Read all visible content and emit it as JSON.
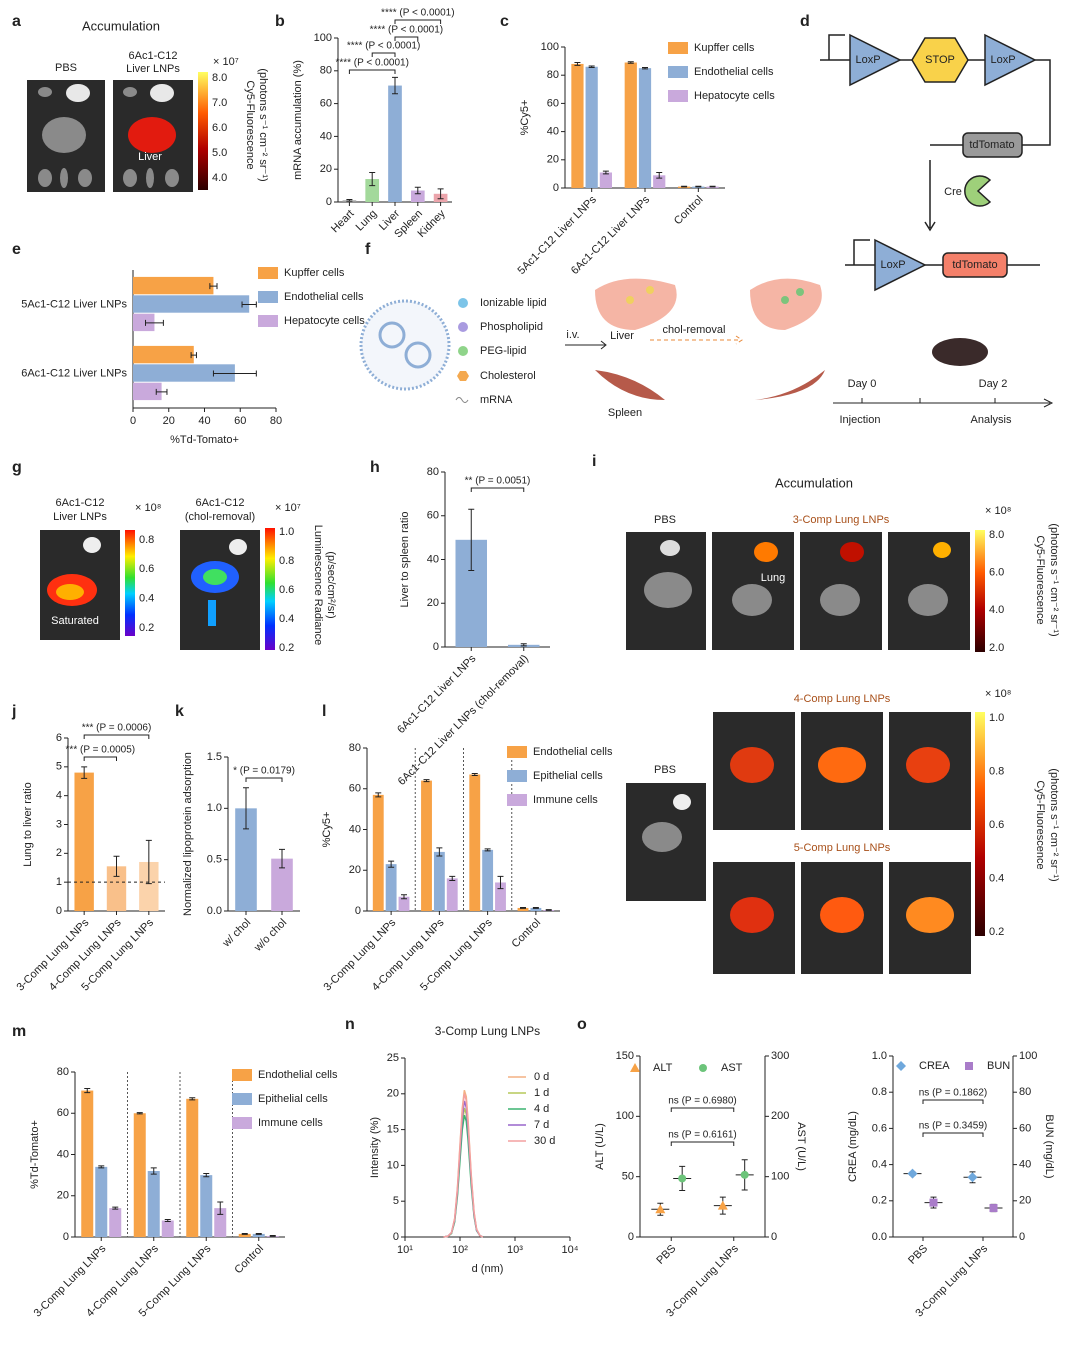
{
  "panel_labels": [
    "a",
    "b",
    "c",
    "d",
    "e",
    "f",
    "g",
    "h",
    "i",
    "j",
    "k",
    "l",
    "m",
    "n",
    "o"
  ],
  "panel_a": {
    "title": "Accumulation",
    "labels": [
      "PBS",
      "6Ac1-C12",
      "Liver LNPs"
    ],
    "organ_label": "Liver",
    "scale_exponent": "× 10⁷",
    "scale_ticks": [
      "8.0",
      "7.0",
      "6.0",
      "5.0",
      "4.0"
    ],
    "scale_title": [
      "Cy5-Fluorescence",
      "(photons s⁻¹ cm⁻² sr⁻¹)"
    ]
  },
  "panel_d": {
    "top": [
      "LoxP",
      "STOP",
      "LoxP",
      "tdTomato"
    ],
    "enzyme": "Cre",
    "bottom": [
      "LoxP",
      "tdTomato"
    ]
  },
  "panel_f": {
    "legend": [
      "Ionizable lipid",
      "Phospholipid",
      "PEG-lipid",
      "Cholesterol",
      "mRNA"
    ],
    "route": "i.v.",
    "liver": "Liver",
    "treatment": "chol-removal",
    "spleen": "Spleen",
    "timeline": [
      "Day 0",
      "Day 2"
    ],
    "steps": [
      "Injection",
      "Analysis"
    ]
  },
  "panel_g": {
    "labels": [
      "6Ac1-C12",
      "Liver LNPs",
      "6Ac1-C12",
      "(chol-removal)"
    ],
    "note": "Saturated",
    "scale1_exponent": "× 10⁸",
    "scale1_ticks": [
      "0.8",
      "0.6",
      "0.4",
      "0.2"
    ],
    "scale2_exponent": "× 10⁷",
    "scale2_ticks": [
      "1.0",
      "0.8",
      "0.6",
      "0.4",
      "0.2"
    ],
    "scale_title": [
      "Luminescence Radiance",
      "(p/sec/cm²/sr)"
    ]
  },
  "panel_i": {
    "title": "Accumulation",
    "top": {
      "control": "PBS",
      "group": "3-Comp Lung LNPs",
      "organ_label": "Lung",
      "scale_exponent": "× 10⁸",
      "scale_ticks": [
        "8.0",
        "6.0",
        "4.0",
        "2.0"
      ],
      "scale_title": [
        "Cy5-Fluorescence",
        "(photons s⁻¹ cm⁻² sr⁻¹)"
      ]
    },
    "bottom": {
      "control": "PBS",
      "groups": [
        "4-Comp Lung LNPs",
        "5-Comp Lung LNPs"
      ],
      "scale_exponent": "× 10⁸",
      "scale_ticks": [
        "1.0",
        "0.8",
        "0.6",
        "0.4",
        "0.2"
      ],
      "scale_title": [
        "Cy5-Fluorescence",
        "(photons s⁻¹ cm⁻² sr⁻¹)"
      ]
    }
  },
  "chart_data": [
    {
      "type": "bar",
      "ylabel": "mRNA accumulation (%)",
      "categories": [
        "Heart",
        "Lung",
        "Liver",
        "Spleen",
        "Kidney"
      ],
      "values": [
        1,
        14,
        71,
        7,
        5
      ],
      "errors": [
        0.5,
        4,
        5,
        2,
        3
      ],
      "colors": [
        "#9e9e9e",
        "#a3d99b",
        "#8eaed6",
        "#c9a9dc",
        "#eba4ab"
      ],
      "ylim": [
        0,
        100
      ],
      "yticks": [
        0,
        20,
        40,
        60,
        80,
        100
      ],
      "annotations": [
        "**** (P < 0.0001)",
        "**** (P < 0.0001)",
        "**** (P < 0.0001)",
        "**** (P < 0.0001)"
      ]
    },
    {
      "type": "bar",
      "ylabel": "%Cy5+",
      "categories": [
        "5Ac1-C12 Liver LNPs",
        "6Ac1-C12 Liver LNPs",
        "Control"
      ],
      "series": [
        {
          "name": "Kupffer cells",
          "color": "#f7a246",
          "values": [
            88,
            89,
            1
          ],
          "errors": [
            1,
            0.5,
            0.2
          ]
        },
        {
          "name": "Endothelial cells",
          "color": "#8eaed6",
          "values": [
            86,
            85,
            1
          ],
          "errors": [
            0.5,
            0.5,
            0.2
          ]
        },
        {
          "name": "Hepatocyte cells",
          "color": "#c9a9dc",
          "values": [
            11,
            9,
            1
          ],
          "errors": [
            1,
            2,
            0.2
          ]
        }
      ],
      "ylim": [
        0,
        100
      ],
      "yticks": [
        0,
        20,
        40,
        60,
        80,
        100
      ]
    },
    {
      "type": "hbar",
      "xlabel": "%Td-Tomato+",
      "categories": [
        "5Ac1-C12 Liver LNPs",
        "6Ac1-C12 Liver LNPs"
      ],
      "series": [
        {
          "name": "Kupffer cells",
          "color": "#f7a246",
          "values": [
            45,
            34
          ],
          "errors": [
            2,
            1.5
          ]
        },
        {
          "name": "Endothelial cells",
          "color": "#8eaed6",
          "values": [
            65,
            57
          ],
          "errors": [
            4,
            12
          ]
        },
        {
          "name": "Hepatocyte cells",
          "color": "#c9a9dc",
          "values": [
            12,
            16
          ],
          "errors": [
            5,
            3
          ]
        }
      ],
      "xlim": [
        0,
        80
      ],
      "xticks": [
        0,
        20,
        40,
        60,
        80
      ]
    },
    {
      "type": "bar",
      "ylabel": "Liver to spleen ratio",
      "categories": [
        "6Ac1-C12 Liver LNPs",
        "6Ac1-C12 Liver LNPs (chol-removal)"
      ],
      "values": [
        49,
        1
      ],
      "errors": [
        14,
        0.5
      ],
      "colors": [
        "#8eaed6",
        "#8eaed6"
      ],
      "ylim": [
        0,
        80
      ],
      "yticks": [
        0,
        20,
        40,
        60,
        80
      ],
      "annotations": [
        "** (P = 0.0051)"
      ]
    },
    {
      "type": "bar",
      "ylabel": "Lung to liver ratio",
      "categories": [
        "3-Comp Lung LNPs",
        "4-Comp Lung LNPs",
        "5-Comp Lung LNPs"
      ],
      "values": [
        4.8,
        1.55,
        1.7
      ],
      "errors": [
        0.2,
        0.35,
        0.75
      ],
      "colors": [
        "#f7a246",
        "#f9c08a",
        "#fbd3ab"
      ],
      "ylim": [
        0,
        6
      ],
      "yticks": [
        0,
        1,
        2,
        3,
        4,
        5,
        6
      ],
      "hline": 1,
      "annotations": [
        "*** (P = 0.0006)",
        "*** (P = 0.0005)"
      ]
    },
    {
      "type": "bar",
      "ylabel": "Normalized lipoprotein adsorption",
      "categories": [
        "w/ chol",
        "w/o chol"
      ],
      "values": [
        1.0,
        0.51
      ],
      "errors": [
        0.2,
        0.09
      ],
      "colors": [
        "#8eaed6",
        "#c9a9dc"
      ],
      "ylim": [
        0,
        1.5
      ],
      "yticks": [
        {
          "value": 0,
          "label": "0.0"
        },
        0.5,
        {
          "value": 1,
          "label": "1.0"
        },
        1.5
      ],
      "annotations": [
        "* (P = 0.0179)"
      ]
    },
    {
      "type": "bar",
      "ylabel": "%Cy5+",
      "categories": [
        "3-Comp Lung LNPs",
        "4-Comp Lung LNPs",
        "5-Comp Lung LNPs",
        "Control"
      ],
      "group_separators": true,
      "series": [
        {
          "name": "Endothelial cells",
          "color": "#f7a246",
          "values": [
            57,
            64,
            67,
            1.5
          ],
          "errors": [
            1,
            0.5,
            0.5,
            0.2
          ]
        },
        {
          "name": "Epithelial cells",
          "color": "#8eaed6",
          "values": [
            23,
            29,
            30,
            1.5
          ],
          "errors": [
            1.5,
            2,
            0.5,
            0.2
          ]
        },
        {
          "name": "Immune cells",
          "color": "#c9a9dc",
          "values": [
            7,
            16,
            14,
            0.5
          ],
          "errors": [
            1,
            1,
            3,
            0.2
          ]
        }
      ],
      "ylim": [
        0,
        80
      ],
      "yticks": [
        0,
        20,
        40,
        60,
        80
      ]
    },
    {
      "type": "bar",
      "ylabel": "%Td-Tomato+",
      "categories": [
        "3-Comp Lung LNPs",
        "4-Comp Lung LNPs",
        "5-Comp Lung LNPs",
        "Control"
      ],
      "group_separators": true,
      "series": [
        {
          "name": "Endothelial cells",
          "color": "#f7a246",
          "values": [
            71,
            60,
            67,
            1.5
          ],
          "errors": [
            1,
            0.3,
            0.5,
            0.2
          ]
        },
        {
          "name": "Epithelial cells",
          "color": "#8eaed6",
          "values": [
            34,
            32,
            30,
            1.5
          ],
          "errors": [
            0.5,
            1.5,
            0.8,
            0.2
          ]
        },
        {
          "name": "Immune cells",
          "color": "#c9a9dc",
          "values": [
            14,
            8,
            14,
            0.5
          ],
          "errors": [
            0.5,
            0.5,
            3,
            0.2
          ]
        }
      ],
      "ylim": [
        0,
        80
      ],
      "yticks": [
        0,
        20,
        40,
        60,
        80
      ]
    },
    {
      "type": "line",
      "title": "3-Comp Lung LNPs",
      "xlabel": "d (nm)",
      "ylabel": "Intensity (%)",
      "xscale": "log",
      "x": [
        50,
        60,
        70,
        80,
        90,
        100,
        110,
        120,
        130,
        140,
        160,
        180,
        200,
        230,
        260
      ],
      "series": [
        {
          "name": "0 d",
          "color": "#f4b183",
          "values": [
            0,
            0.1,
            0.6,
            2.6,
            7,
            12.9,
            18,
            20.5,
            19.6,
            16.4,
            8.7,
            3.5,
            1.1,
            0.2,
            0
          ]
        },
        {
          "name": "1 d",
          "color": "#b5c95a",
          "values": [
            0,
            0.1,
            0.5,
            2.3,
            6.1,
            11.3,
            15.8,
            18,
            17.2,
            14.4,
            7.7,
            3.1,
            1,
            0.2,
            0
          ]
        },
        {
          "name": "4 d",
          "color": "#3cb371",
          "values": [
            0,
            0.1,
            0.5,
            2.1,
            5.8,
            10.7,
            15,
            17,
            16.2,
            13.6,
            7.2,
            2.9,
            0.9,
            0.2,
            0
          ]
        },
        {
          "name": "7 d",
          "color": "#9966cc",
          "values": [
            0,
            0.1,
            0.6,
            2.4,
            6.5,
            12,
            16.7,
            19,
            18.1,
            15.2,
            8.1,
            3.2,
            1,
            0.2,
            0
          ]
        },
        {
          "name": "30 d",
          "color": "#f4a0a0",
          "values": [
            0,
            0.1,
            0.6,
            2.5,
            6.8,
            12.6,
            17.6,
            20,
            19.1,
            16,
            8.5,
            3.4,
            1.1,
            0.2,
            0
          ]
        }
      ],
      "xlim": [
        10,
        10000
      ],
      "xticks": [
        {
          "value": 10,
          "label": "10¹"
        },
        {
          "value": 100,
          "label": "10²"
        },
        {
          "value": 1000,
          "label": "10³"
        },
        {
          "value": 10000,
          "label": "10⁴"
        }
      ],
      "ylim": [
        0,
        25
      ],
      "yticks": [
        0,
        5,
        10,
        15,
        20,
        25
      ]
    },
    {
      "type": "dot",
      "ylabel": "ALT (U/L)",
      "y2label": "AST (U/L)",
      "categories": [
        "PBS",
        "3-Comp Lung LNPs"
      ],
      "series": [
        {
          "name": "ALT",
          "color": "#f7a246",
          "marker": "triangle",
          "values": [
            23,
            26
          ],
          "errors": [
            5,
            7
          ]
        },
        {
          "name": "AST",
          "color": "#6cc47a",
          "marker": "circle",
          "axis": "y2",
          "values": [
            97,
            103
          ],
          "errors": [
            20,
            25
          ]
        }
      ],
      "ylim": [
        0,
        150
      ],
      "yticks": [
        0,
        50,
        100,
        150
      ],
      "y2lim": [
        0,
        300
      ],
      "y2ticks": [
        0,
        100,
        200,
        300
      ],
      "annotations": [
        "ns (P = 0.6980)",
        "ns (P = 0.6161)"
      ]
    },
    {
      "type": "dot",
      "ylabel": "CREA (mg/dL)",
      "y2label": "BUN (mg/dL)",
      "categories": [
        "PBS",
        "3-Comp Lung LNPs"
      ],
      "series": [
        {
          "name": "CREA",
          "color": "#6fa8dc",
          "marker": "diamond",
          "values": [
            0.35,
            0.33
          ],
          "errors": [
            0.01,
            0.03
          ]
        },
        {
          "name": "BUN",
          "color": "#a97cc9",
          "marker": "square",
          "axis": "y2",
          "values": [
            19,
            16
          ],
          "errors": [
            3,
            2
          ]
        }
      ],
      "ylim": [
        0,
        1
      ],
      "yticks": [
        {
          "value": 0,
          "label": "0.0"
        },
        0.2,
        0.4,
        0.6,
        0.8,
        {
          "value": 1,
          "label": "1.0"
        }
      ],
      "y2lim": [
        0,
        100
      ],
      "y2ticks": [
        0,
        20,
        40,
        60,
        80,
        100
      ],
      "annotations": [
        "ns (P = 0.1862)",
        "ns (P = 0.3459)"
      ]
    }
  ]
}
